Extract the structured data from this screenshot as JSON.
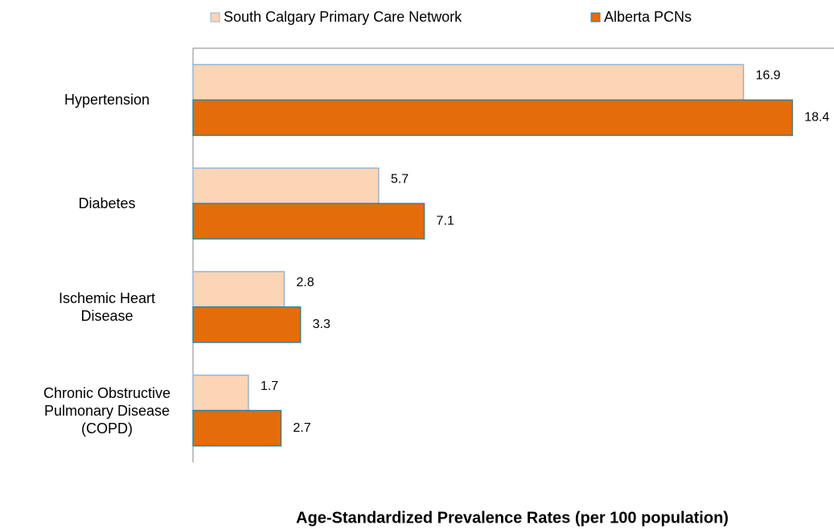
{
  "chart_data": {
    "type": "bar",
    "orientation": "horizontal",
    "x_label": "Age-Standardized Prevalence Rates (per 100 population)",
    "categories": [
      "Hypertension",
      "Diabetes",
      "Ischemic Heart Disease",
      "Chronic Obstructive Pulmonary Disease (COPD)"
    ],
    "series": [
      {
        "name": "South Calgary Primary Care Network",
        "color": "#fcd5b5",
        "stroke": "#95b3d7",
        "values": [
          16.9,
          5.7,
          2.8,
          1.7
        ]
      },
      {
        "name": "Alberta PCNs",
        "color": "#e46c0a",
        "stroke": "#31859c",
        "values": [
          18.4,
          7.1,
          3.3,
          2.7
        ]
      }
    ],
    "xlim": [
      0,
      20
    ],
    "legend": "top"
  }
}
